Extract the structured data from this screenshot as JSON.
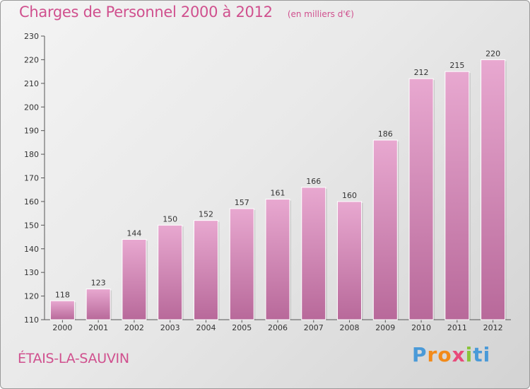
{
  "title": "Charges de Personnel 2000 à 2012",
  "unit_note": "(en milliers d'€)",
  "town": "ÉTAIS-LA-SAUVIN",
  "logo": {
    "text": "Proxiti",
    "letters": [
      "P",
      "r",
      "o",
      "x",
      "i",
      "ti"
    ]
  },
  "colors": {
    "title": "#d0508e",
    "bar_top": "#e8a8d0",
    "bar_bottom": "#b8699a"
  },
  "chart_data": {
    "type": "bar",
    "title": "Charges de Personnel 2000 à 2012",
    "xlabel": "",
    "ylabel": "",
    "categories": [
      "2000",
      "2001",
      "2002",
      "2003",
      "2004",
      "2005",
      "2006",
      "2007",
      "2008",
      "2009",
      "2010",
      "2011",
      "2012"
    ],
    "values": [
      118,
      123,
      144,
      150,
      152,
      157,
      161,
      166,
      160,
      186,
      212,
      215,
      220
    ],
    "ylim": [
      110,
      230
    ],
    "yticks": [
      110,
      120,
      130,
      140,
      150,
      160,
      170,
      180,
      190,
      200,
      210,
      220,
      230
    ],
    "grid": false,
    "data_labels": true
  }
}
